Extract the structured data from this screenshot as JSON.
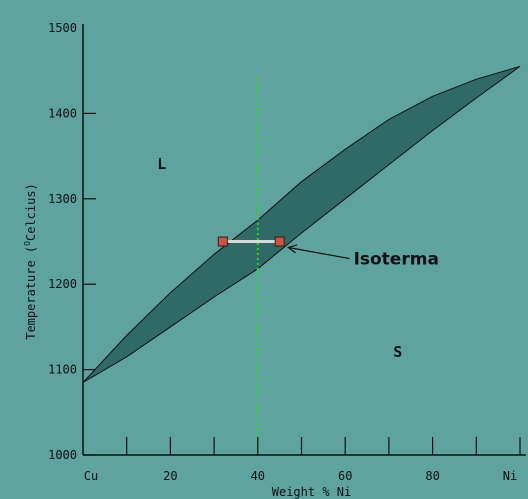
{
  "colors": {
    "background": "#5fa39e",
    "two_phase_region": "#2f6a67",
    "isotherm_line": "#d8d8d8",
    "marker_fill": "#d8503c",
    "composition_line": "#22dd22",
    "axis": "#111111"
  },
  "chart_data": {
    "type": "phase-diagram",
    "title": "",
    "xlabel": "Weight % Ni",
    "ylabel_parts": {
      "prefix": "Temperature (",
      "superscript": "O",
      "suffix": "Celcius)"
    },
    "xlim": [
      0,
      100
    ],
    "ylim": [
      1000,
      1500
    ],
    "x_ticks": [
      {
        "value": 0,
        "label": "Cu"
      },
      {
        "value": 10,
        "label": ""
      },
      {
        "value": 20,
        "label": "20"
      },
      {
        "value": 30,
        "label": ""
      },
      {
        "value": 40,
        "label": "40"
      },
      {
        "value": 50,
        "label": ""
      },
      {
        "value": 60,
        "label": "60"
      },
      {
        "value": 70,
        "label": ""
      },
      {
        "value": 80,
        "label": "80"
      },
      {
        "value": 90,
        "label": ""
      },
      {
        "value": 100,
        "label": "Ni"
      }
    ],
    "y_ticks": [
      {
        "value": 1000,
        "label": "1000"
      },
      {
        "value": 1100,
        "label": "1100"
      },
      {
        "value": 1200,
        "label": "1200"
      },
      {
        "value": 1300,
        "label": "1300"
      },
      {
        "value": 1400,
        "label": "1400"
      },
      {
        "value": 1500,
        "label": "1500"
      }
    ],
    "liquidus": [
      {
        "x": 0,
        "y": 1085
      },
      {
        "x": 10,
        "y": 1140
      },
      {
        "x": 20,
        "y": 1190
      },
      {
        "x": 30,
        "y": 1235
      },
      {
        "x": 40,
        "y": 1275
      },
      {
        "x": 50,
        "y": 1320
      },
      {
        "x": 60,
        "y": 1358
      },
      {
        "x": 70,
        "y": 1393
      },
      {
        "x": 80,
        "y": 1420
      },
      {
        "x": 90,
        "y": 1440
      },
      {
        "x": 100,
        "y": 1455
      }
    ],
    "solidus": [
      {
        "x": 0,
        "y": 1085
      },
      {
        "x": 10,
        "y": 1115
      },
      {
        "x": 20,
        "y": 1150
      },
      {
        "x": 30,
        "y": 1185
      },
      {
        "x": 40,
        "y": 1218
      },
      {
        "x": 50,
        "y": 1260
      },
      {
        "x": 60,
        "y": 1300
      },
      {
        "x": 70,
        "y": 1340
      },
      {
        "x": 80,
        "y": 1380
      },
      {
        "x": 90,
        "y": 1418
      },
      {
        "x": 100,
        "y": 1455
      }
    ],
    "composition_line": {
      "x": 40
    },
    "isotherm": {
      "y": 1250,
      "x_left": 32,
      "x_right": 45
    },
    "region_labels": [
      {
        "text": "L",
        "x": 17,
        "y": 1335
      },
      {
        "text": "S",
        "x": 71,
        "y": 1115
      }
    ],
    "annotation": {
      "text": "Isoterma",
      "arrow_from": {
        "x": 61,
        "y": 1230
      },
      "arrow_to": {
        "x": 47,
        "y": 1243
      }
    }
  }
}
